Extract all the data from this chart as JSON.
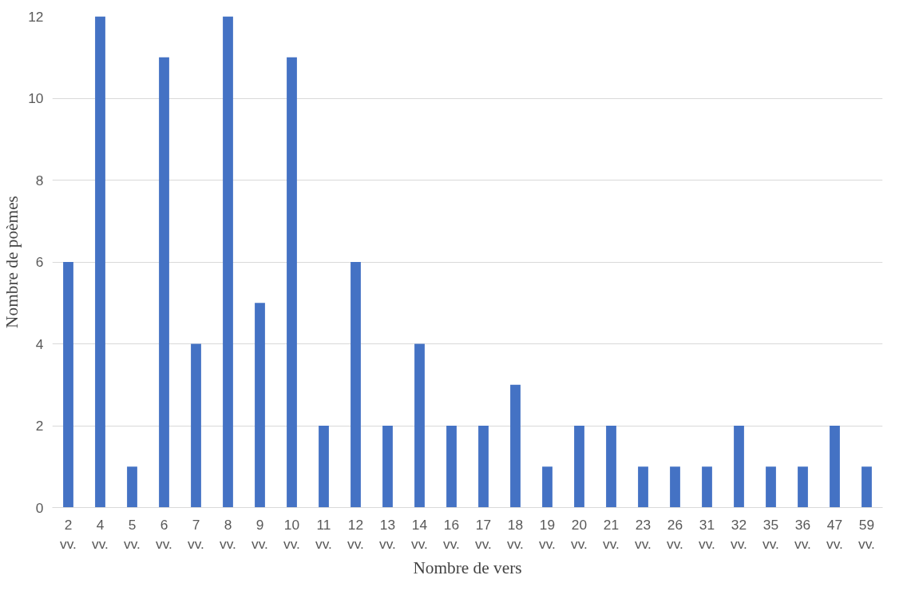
{
  "chart_data": {
    "type": "bar",
    "xlabel": "Nombre de vers",
    "ylabel": "Nombre de poèmes",
    "categories": [
      "2 vv.",
      "4 vv.",
      "5 vv.",
      "6 vv.",
      "7 vv.",
      "8 vv.",
      "9 vv.",
      "10 vv.",
      "11 vv.",
      "12 vv.",
      "13 vv.",
      "14 vv.",
      "16 vv.",
      "17 vv.",
      "18 vv.",
      "19 vv.",
      "20 vv.",
      "21 vv.",
      "23 vv.",
      "26 vv.",
      "31 vv.",
      "32 vv.",
      "35 vv.",
      "36 vv.",
      "47 vv.",
      "59 vv."
    ],
    "values": [
      6,
      12,
      1,
      11,
      4,
      12,
      5,
      11,
      2,
      6,
      2,
      4,
      2,
      2,
      3,
      1,
      2,
      2,
      1,
      1,
      1,
      2,
      1,
      1,
      2,
      1
    ],
    "color": "#4472c4",
    "ylim": [
      0,
      12
    ],
    "yticks": [
      0,
      2,
      4,
      6,
      8,
      10,
      12
    ],
    "grid": "y"
  }
}
